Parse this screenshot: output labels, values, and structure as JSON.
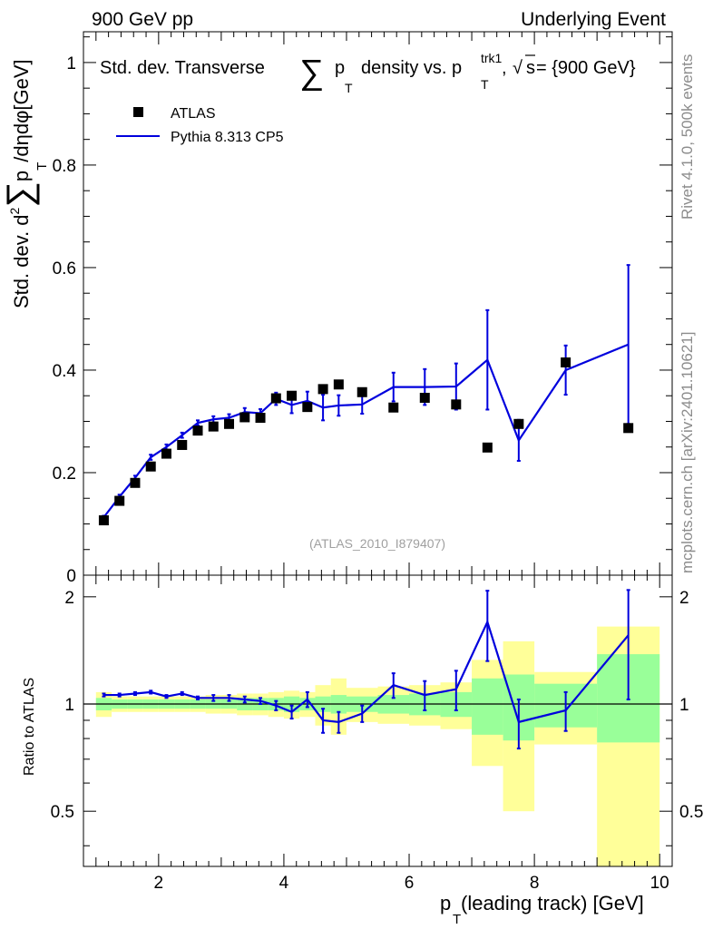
{
  "header": {
    "left": "900 GeV pp",
    "right": "Underlying Event"
  },
  "side_labels": {
    "rivet": "Rivet 4.1.0,  500k events",
    "mcplots": "mcplots.cern.ch [arXiv:2401.10621]"
  },
  "colors": {
    "mc": "#0000dd",
    "data": "#000000",
    "band_inner": "#99ff99",
    "band_outer": "#ffff99"
  },
  "chart_data": [
    {
      "type": "scatter",
      "panel": "main",
      "title": "Std. dev. Transverse ∑ p_T density vs. p_T^trk1, √s = {900 GeV}",
      "title_parts": {
        "a": "Std. dev. Transverse",
        "sum": "∑",
        "p": "p",
        "T": "T",
        "b": "density vs. p",
        "trk1": "trk1",
        "sep": ", ",
        "sqrt": "√",
        "s": "s",
        "c": " = {900 GeV}"
      },
      "ylabel": "Std. dev. d²∑p_T/dηdφ[GeV]",
      "ylabel_parts": {
        "a": "Std. dev. d",
        "sup2": "2",
        "sum": "∑",
        "p": "p",
        "T": "T",
        "b": "/dηdφ[GeV]"
      },
      "watermark": "(ATLAS_2010_I879407)",
      "xlim": [
        0.8,
        10.2
      ],
      "ylim": [
        0,
        1.06
      ],
      "yticks": [
        0,
        0.2,
        0.4,
        0.6,
        0.8,
        1
      ],
      "ytick_labels": [
        "0",
        "0.2",
        "0.4",
        "0.6",
        "0.8",
        "1"
      ],
      "legend": {
        "position": "top-left",
        "entries": [
          {
            "label": "ATLAS",
            "style": "marker"
          },
          {
            "label": "Pythia 8.313 CP5",
            "style": "line"
          }
        ]
      },
      "series": [
        {
          "name": "ATLAS",
          "x": [
            1.125,
            1.375,
            1.625,
            1.875,
            2.125,
            2.375,
            2.625,
            2.875,
            3.125,
            3.375,
            3.625,
            3.875,
            4.125,
            4.375,
            4.625,
            4.875,
            5.25,
            5.75,
            6.25,
            6.75,
            7.25,
            7.75,
            8.5,
            9.5
          ],
          "y": [
            0.107,
            0.145,
            0.18,
            0.212,
            0.237,
            0.254,
            0.282,
            0.29,
            0.295,
            0.308,
            0.307,
            0.345,
            0.35,
            0.328,
            0.363,
            0.372,
            0.357,
            0.327,
            0.346,
            0.333,
            0.249,
            0.295,
            0.415,
            0.287
          ]
        },
        {
          "name": "Pythia 8.313 CP5",
          "x": [
            1.125,
            1.375,
            1.625,
            1.875,
            2.125,
            2.375,
            2.625,
            2.875,
            3.125,
            3.375,
            3.625,
            3.875,
            4.125,
            4.375,
            4.625,
            4.875,
            5.25,
            5.75,
            6.25,
            6.75,
            7.25,
            7.75,
            8.5,
            9.5
          ],
          "y": [
            0.113,
            0.153,
            0.19,
            0.23,
            0.25,
            0.273,
            0.297,
            0.304,
            0.307,
            0.318,
            0.316,
            0.344,
            0.332,
            0.34,
            0.327,
            0.331,
            0.333,
            0.367,
            0.367,
            0.368,
            0.42,
            0.263,
            0.4,
            0.45
          ],
          "yerr": [
            0.003,
            0.004,
            0.004,
            0.005,
            0.005,
            0.005,
            0.005,
            0.006,
            0.007,
            0.008,
            0.008,
            0.012,
            0.016,
            0.018,
            0.025,
            0.02,
            0.018,
            0.028,
            0.035,
            0.045,
            0.097,
            0.04,
            0.048,
            0.155
          ]
        }
      ]
    },
    {
      "type": "line",
      "panel": "ratio",
      "ylabel": "Ratio to ATLAS",
      "xlabel": "p_T (leading track) [GeV]",
      "xlabel_parts": {
        "p": "p",
        "T": "T",
        "rest": " (leading track) [GeV]"
      },
      "xlim": [
        0.8,
        10.2
      ],
      "ylim": [
        0.35,
        2.3
      ],
      "yticks": [
        0.5,
        1,
        2
      ],
      "ytick_labels": [
        "0.5",
        "1",
        "2"
      ],
      "xticks": [
        2,
        4,
        6,
        8,
        10
      ],
      "xtick_labels": [
        "2",
        "4",
        "6",
        "8",
        "10"
      ],
      "reference_line": 1,
      "bands": {
        "edges": [
          1.0,
          1.25,
          1.5,
          1.75,
          2.0,
          2.25,
          2.5,
          2.75,
          3.0,
          3.25,
          3.5,
          3.75,
          4.0,
          4.25,
          4.5,
          4.75,
          5.0,
          5.5,
          6.0,
          6.5,
          7.0,
          7.5,
          8.0,
          9.0,
          10.0
        ],
        "inner_low": [
          0.96,
          0.97,
          0.97,
          0.97,
          0.97,
          0.97,
          0.97,
          0.97,
          0.97,
          0.96,
          0.96,
          0.96,
          0.95,
          0.96,
          0.95,
          0.94,
          0.95,
          0.94,
          0.93,
          0.92,
          0.82,
          0.79,
          0.86,
          0.78
        ],
        "inner_high": [
          1.04,
          1.03,
          1.03,
          1.03,
          1.03,
          1.03,
          1.03,
          1.03,
          1.03,
          1.04,
          1.04,
          1.04,
          1.05,
          1.04,
          1.05,
          1.06,
          1.05,
          1.06,
          1.07,
          1.08,
          1.18,
          1.21,
          1.14,
          1.38
        ],
        "outer_low": [
          0.92,
          0.95,
          0.95,
          0.95,
          0.95,
          0.95,
          0.95,
          0.94,
          0.94,
          0.93,
          0.93,
          0.92,
          0.91,
          0.92,
          0.87,
          0.82,
          0.89,
          0.88,
          0.87,
          0.85,
          0.67,
          0.5,
          0.77,
          0.35
        ],
        "outer_high": [
          1.08,
          1.05,
          1.05,
          1.05,
          1.05,
          1.05,
          1.05,
          1.06,
          1.06,
          1.07,
          1.07,
          1.08,
          1.09,
          1.08,
          1.13,
          1.18,
          1.11,
          1.12,
          1.13,
          1.15,
          1.33,
          1.5,
          1.23,
          1.65
        ]
      },
      "series": [
        {
          "name": "Pythia 8.313 CP5 / ATLAS",
          "x": [
            1.125,
            1.375,
            1.625,
            1.875,
            2.125,
            2.375,
            2.625,
            2.875,
            3.125,
            3.375,
            3.625,
            3.875,
            4.125,
            4.375,
            4.625,
            4.875,
            5.25,
            5.75,
            6.25,
            6.75,
            7.25,
            7.75,
            8.5,
            9.5
          ],
          "y": [
            1.06,
            1.06,
            1.07,
            1.08,
            1.05,
            1.07,
            1.04,
            1.04,
            1.04,
            1.03,
            1.02,
            0.99,
            0.95,
            1.03,
            0.9,
            0.89,
            0.94,
            1.13,
            1.06,
            1.1,
            1.7,
            0.89,
            0.96,
            1.56
          ],
          "yerr": [
            0.01,
            0.01,
            0.01,
            0.01,
            0.01,
            0.01,
            0.01,
            0.02,
            0.02,
            0.02,
            0.02,
            0.03,
            0.04,
            0.05,
            0.07,
            0.06,
            0.05,
            0.09,
            0.1,
            0.14,
            0.38,
            0.14,
            0.12,
            0.53
          ]
        }
      ]
    }
  ]
}
